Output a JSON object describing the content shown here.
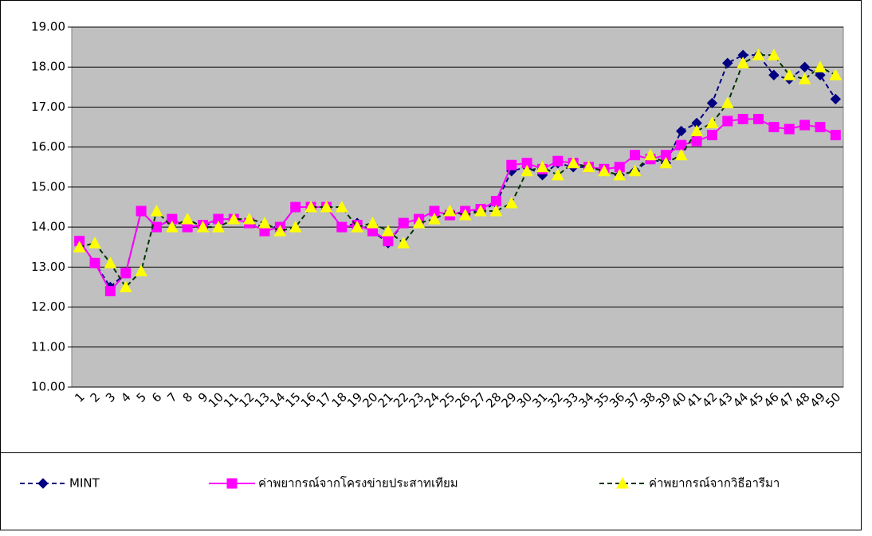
{
  "chart_data": {
    "type": "line",
    "categories": [
      "1",
      "2",
      "3",
      "4",
      "5",
      "6",
      "7",
      "8",
      "9",
      "10",
      "11",
      "12",
      "13",
      "14",
      "15",
      "16",
      "17",
      "18",
      "19",
      "20",
      "21",
      "22",
      "23",
      "24",
      "25",
      "26",
      "27",
      "28",
      "29",
      "30",
      "31",
      "32",
      "33",
      "34",
      "35",
      "36",
      "37",
      "38",
      "39",
      "40",
      "41",
      "42",
      "43",
      "44",
      "45",
      "46",
      "47",
      "48",
      "49",
      "50"
    ],
    "ylim": [
      10,
      19
    ],
    "yticks": [
      {
        "value": 10,
        "label": "10.00"
      },
      {
        "value": 11,
        "label": "11.00"
      },
      {
        "value": 12,
        "label": "12.00"
      },
      {
        "value": 13,
        "label": "13.00"
      },
      {
        "value": 14,
        "label": "14.00"
      },
      {
        "value": 15,
        "label": "15.00"
      },
      {
        "value": 16,
        "label": "16.00"
      },
      {
        "value": 17,
        "label": "17.00"
      },
      {
        "value": 18,
        "label": "18.00"
      },
      {
        "value": 19,
        "label": "19.00"
      }
    ],
    "grid": true,
    "legend": "bottom",
    "plot_background": "#c0c0c0",
    "series": [
      {
        "name": "MINT",
        "color": "#000080",
        "line_color": "#000080",
        "dash": true,
        "marker": "diamond",
        "values": [
          13.65,
          13.1,
          12.5,
          12.85,
          14.4,
          14.0,
          14.2,
          14.0,
          14.0,
          14.2,
          14.2,
          14.1,
          14.0,
          14.0,
          14.5,
          14.5,
          14.5,
          14.0,
          14.1,
          13.9,
          13.6,
          14.1,
          14.2,
          14.4,
          14.3,
          14.4,
          14.4,
          14.6,
          15.4,
          15.5,
          15.3,
          15.6,
          15.5,
          15.5,
          15.4,
          15.3,
          15.4,
          15.7,
          15.6,
          16.4,
          16.6,
          17.1,
          18.1,
          18.3,
          18.3,
          17.8,
          17.7,
          18.0,
          17.8,
          17.2
        ]
      },
      {
        "name": "ค่าพยากรณ์จากโครงข่ายประสาทเทียม",
        "color": "#ff00ff",
        "line_color": "#ff00ff",
        "dash": false,
        "marker": "square",
        "values": [
          13.65,
          13.1,
          12.4,
          12.85,
          14.4,
          14.0,
          14.2,
          14.0,
          14.05,
          14.2,
          14.2,
          14.1,
          13.9,
          14.0,
          14.5,
          14.5,
          14.5,
          14.0,
          14.05,
          13.9,
          13.65,
          14.1,
          14.2,
          14.4,
          14.3,
          14.4,
          14.45,
          14.65,
          15.55,
          15.6,
          15.45,
          15.65,
          15.6,
          15.5,
          15.45,
          15.5,
          15.8,
          15.7,
          15.8,
          16.05,
          16.15,
          16.3,
          16.65,
          16.7,
          16.7,
          16.5,
          16.45,
          16.55,
          16.5,
          16.3
        ]
      },
      {
        "name": "ค่าพยากรณ์จากวิธีอารีมา",
        "color": "#ffff00",
        "line_color": "#003300",
        "dash": true,
        "marker": "triangle",
        "values": [
          13.5,
          13.6,
          13.1,
          12.5,
          12.9,
          14.4,
          14.0,
          14.2,
          14.0,
          14.0,
          14.2,
          14.2,
          14.1,
          13.9,
          14.0,
          14.5,
          14.5,
          14.5,
          14.0,
          14.1,
          13.9,
          13.6,
          14.1,
          14.2,
          14.4,
          14.3,
          14.4,
          14.4,
          14.6,
          15.4,
          15.5,
          15.3,
          15.6,
          15.5,
          15.4,
          15.3,
          15.4,
          15.8,
          15.6,
          15.8,
          16.4,
          16.6,
          17.1,
          18.1,
          18.3,
          18.3,
          17.8,
          17.7,
          18.0,
          17.8
        ]
      }
    ]
  }
}
